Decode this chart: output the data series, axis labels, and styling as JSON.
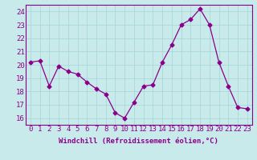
{
  "x": [
    0,
    1,
    2,
    3,
    4,
    5,
    6,
    7,
    8,
    9,
    10,
    11,
    12,
    13,
    14,
    15,
    16,
    17,
    18,
    19,
    20,
    21,
    22,
    23
  ],
  "y": [
    20.2,
    20.3,
    18.4,
    19.9,
    19.5,
    19.3,
    18.7,
    18.2,
    17.8,
    16.4,
    16.0,
    17.2,
    18.4,
    18.5,
    20.2,
    21.5,
    23.0,
    23.4,
    24.2,
    23.0,
    20.2,
    18.4,
    16.8,
    16.7
  ],
  "line_color": "#8B008B",
  "marker": "D",
  "marker_size": 2.5,
  "bg_color": "#c8eaea",
  "grid_color": "#a8d8d8",
  "xlabel": "Windchill (Refroidissement éolien,°C)",
  "xlim": [
    -0.5,
    23.5
  ],
  "ylim": [
    15.5,
    24.5
  ],
  "yticks": [
    16,
    17,
    18,
    19,
    20,
    21,
    22,
    23,
    24
  ],
  "xticks": [
    0,
    1,
    2,
    3,
    4,
    5,
    6,
    7,
    8,
    9,
    10,
    11,
    12,
    13,
    14,
    15,
    16,
    17,
    18,
    19,
    20,
    21,
    22,
    23
  ],
  "xlabel_fontsize": 6.5,
  "tick_fontsize": 6.5
}
